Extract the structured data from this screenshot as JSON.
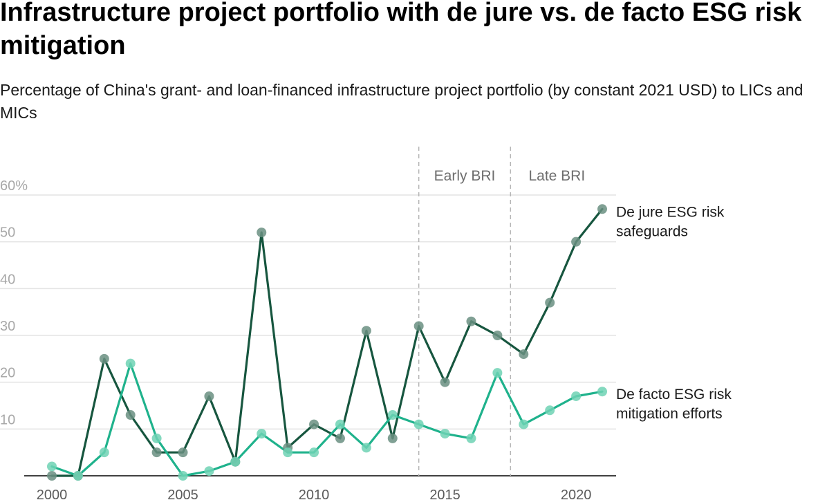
{
  "chart_data": {
    "type": "line",
    "title": "Infrastructure project portfolio with de jure vs. de facto ESG risk mitigation",
    "subtitle": "Percentage of China's grant- and loan-financed infrastructure project portfolio (by constant 2021 USD) to LICs and MICs",
    "x": [
      2000,
      2001,
      2002,
      2003,
      2004,
      2005,
      2006,
      2007,
      2008,
      2009,
      2010,
      2011,
      2012,
      2013,
      2014,
      2015,
      2016,
      2017,
      2018,
      2019,
      2020,
      2021
    ],
    "series": [
      {
        "name": "De jure ESG risk safeguards",
        "label_lines": [
          "De jure ESG risk",
          "safeguards"
        ],
        "color": "#17563f",
        "marker_color": "#6a8f81",
        "values": [
          0,
          0,
          25,
          13,
          5,
          5,
          17,
          3,
          52,
          6,
          11,
          8,
          31,
          8,
          32,
          20,
          33,
          30,
          26,
          37,
          50,
          57
        ]
      },
      {
        "name": "De facto ESG risk mitigation efforts",
        "label_lines": [
          "De facto ESG risk",
          "mitigation efforts"
        ],
        "color": "#1fb28c",
        "marker_color": "#6fd2b4",
        "values": [
          2,
          0,
          5,
          24,
          8,
          0,
          1,
          3,
          9,
          5,
          5,
          11,
          6,
          13,
          11,
          9,
          8,
          22,
          11,
          14,
          17,
          18
        ]
      }
    ],
    "y_ticks": [
      {
        "value": 10,
        "label": "10"
      },
      {
        "value": 20,
        "label": "20"
      },
      {
        "value": 30,
        "label": "30"
      },
      {
        "value": 40,
        "label": "40"
      },
      {
        "value": 50,
        "label": "50"
      },
      {
        "value": 60,
        "label": "60%"
      }
    ],
    "x_ticks": [
      {
        "value": 2000,
        "label": "2000"
      },
      {
        "value": 2005,
        "label": "2005"
      },
      {
        "value": 2010,
        "label": "2010"
      },
      {
        "value": 2015,
        "label": "2015"
      },
      {
        "value": 2020,
        "label": "2020"
      }
    ],
    "ylim": [
      0,
      60
    ],
    "xlim": [
      2000,
      2021
    ],
    "grid": true,
    "legend": "direct labels at right end of lines",
    "annotations": [
      {
        "type": "vertical-dashed-line",
        "x": 2014,
        "label": "Early BRI"
      },
      {
        "type": "vertical-dashed-line",
        "x": 2017.5,
        "label": "Late BRI"
      }
    ],
    "colors": {
      "gridline": "#e3e3e3",
      "baseline": "#000000",
      "divider": "#b5b5b5"
    }
  }
}
